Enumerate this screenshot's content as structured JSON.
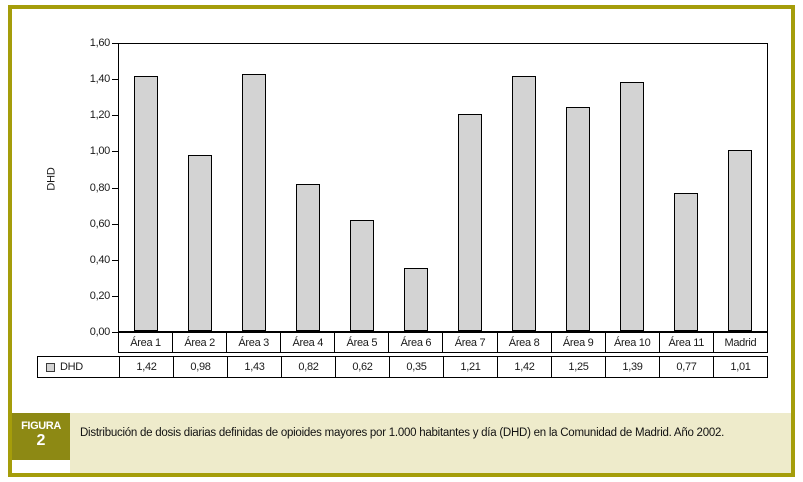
{
  "figure": {
    "badge_label": "FIGURA",
    "badge_number": "2",
    "caption": "Distribución de dosis diarias definidas de opioides mayores por 1.000 habitantes y día (DHD) en la Comunidad de Madrid. Año 2002."
  },
  "colors": {
    "frame_olive": "#A59D0A",
    "badge_olive": "#8D8914",
    "caption_bg": "#EEEBCB",
    "bar_fill": "#D3D3D3",
    "bar_border": "#000000"
  },
  "chart_data": {
    "type": "bar",
    "title": "",
    "xlabel": "",
    "ylabel": "DHD",
    "ylim": [
      0,
      1.6
    ],
    "ytick_step": 0.2,
    "ytick_labels": [
      "1,60",
      "1,40",
      "1,20",
      "1,00",
      "0,80",
      "0,60",
      "0,40",
      "0,20",
      "0,00"
    ],
    "grid": false,
    "legend_position": "table-left",
    "categories": [
      "Área 1",
      "Área 2",
      "Área 3",
      "Área 4",
      "Área 5",
      "Área 6",
      "Área 7",
      "Área 8",
      "Área 9",
      "Área 10",
      "Área 11",
      "Madrid"
    ],
    "series": [
      {
        "name": "DHD",
        "values": [
          1.42,
          0.98,
          1.43,
          0.82,
          0.62,
          0.35,
          1.21,
          1.42,
          1.25,
          1.39,
          0.77,
          1.01
        ]
      }
    ],
    "value_labels": [
      "1,42",
      "0,98",
      "1,43",
      "0,82",
      "0,62",
      "0,35",
      "1,21",
      "1,42",
      "1,25",
      "1,39",
      "0,77",
      "1,01"
    ]
  }
}
